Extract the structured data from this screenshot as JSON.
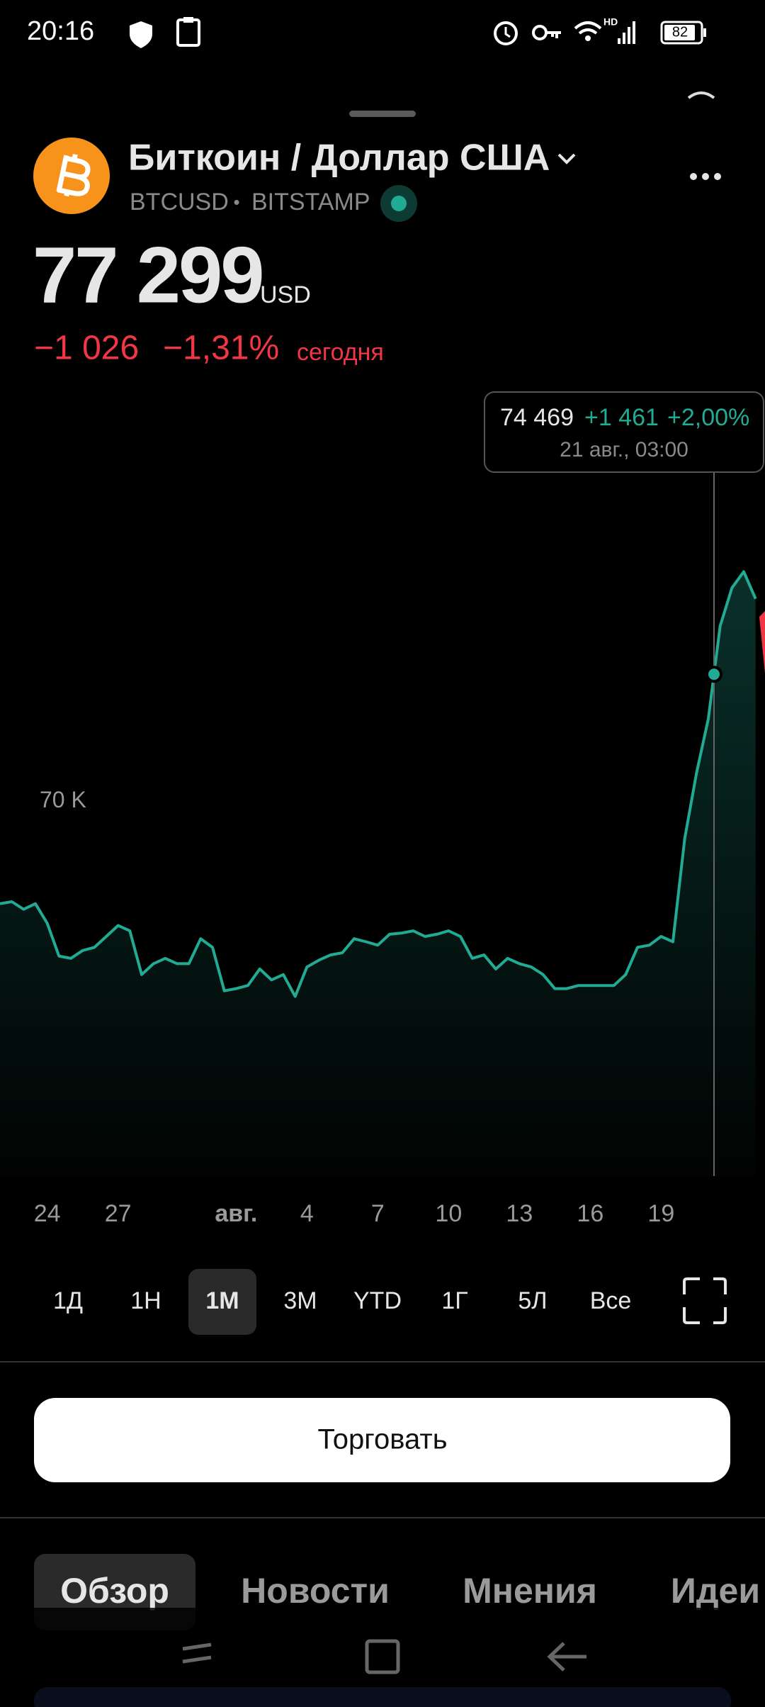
{
  "status_bar": {
    "time": "20:16",
    "network": "HD",
    "battery": "82"
  },
  "header": {
    "title": "Биткоин / Доллар США",
    "symbol": "BTCUSD",
    "separator": "•",
    "exchange": "BITSTAMP"
  },
  "quote": {
    "price": "77 299",
    "currency": "USD",
    "change": "−1 026",
    "change_percent": "−1,31%",
    "period": "сегодня"
  },
  "chart_data": {
    "type": "line",
    "series": [
      {
        "color": "#22ab94",
        "values": [
          66350,
          66420,
          66150,
          66350,
          65650,
          64480,
          64400,
          64680,
          64790,
          65180,
          65570,
          65380,
          63820,
          64210,
          64400,
          64210,
          64210,
          65100,
          64790,
          63240,
          63320,
          63430,
          64020,
          63630,
          63820,
          63040,
          64090,
          64330,
          64520,
          64600,
          65100,
          64990,
          64870,
          65260,
          65300,
          65380,
          65180,
          65260,
          65380,
          65180,
          64400,
          64520,
          64020,
          64400,
          64210,
          64090,
          63820,
          63320,
          63320,
          63430,
          63430,
          63430,
          63430,
          63820,
          64790,
          64870,
          65180,
          64990,
          68680,
          71010,
          72950,
          76260,
          77620,
          78200,
          77230
        ]
      }
    ],
    "xlim": [
      0,
      64.8
    ],
    "xticks": [
      {
        "value": 4,
        "label": "24"
      },
      {
        "value": 10,
        "label": "27"
      },
      {
        "value": 20,
        "label": "авг."
      },
      {
        "value": 26,
        "label": "4"
      },
      {
        "value": 32,
        "label": "7"
      },
      {
        "value": 38,
        "label": "10"
      },
      {
        "value": 44,
        "label": "13"
      },
      {
        "value": 50,
        "label": "16"
      },
      {
        "value": 56,
        "label": "19"
      }
    ],
    "ylim": [
      56630,
      84610
    ],
    "yticks": [
      {
        "value": 70000,
        "label": "70 K"
      }
    ],
    "tooltip": {
      "price": "74 469",
      "change": "+1 461",
      "change_percent": "+2,00%",
      "time": "21 авг., 03:00"
    }
  },
  "ranges": [
    "1Д",
    "1Н",
    "1М",
    "3М",
    "YTD",
    "1Г",
    "5Л",
    "Все"
  ],
  "selected_range": 2,
  "button": "Торговать",
  "tabs": [
    "Обзор",
    "Новости",
    "Мнения",
    "Идеи"
  ],
  "selected_tab": 0
}
